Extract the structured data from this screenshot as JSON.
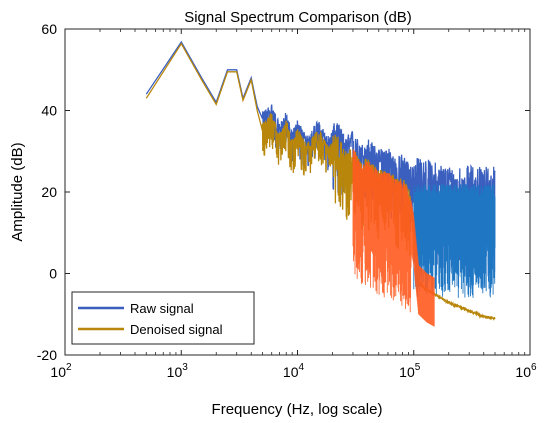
{
  "chart_data": {
    "type": "line",
    "title": "Signal Spectrum Comparison (dB)",
    "xlabel": "Frequency (Hz, log scale)",
    "ylabel": "Amplitude (dB)",
    "x_scale": "log",
    "xlim": [
      100,
      1000000
    ],
    "ylim": [
      -20,
      60
    ],
    "x_ticks": [
      {
        "base": "10",
        "exp": "2"
      },
      {
        "base": "10",
        "exp": "3"
      },
      {
        "base": "10",
        "exp": "4"
      },
      {
        "base": "10",
        "exp": "5"
      },
      {
        "base": "10",
        "exp": "6"
      }
    ],
    "y_ticks": [
      "-20",
      "0",
      "20",
      "40",
      "60"
    ],
    "grid": false,
    "legend_position": "bottom-left",
    "legend": [
      "Raw signal",
      "Denoised signal"
    ],
    "colors": {
      "raw": "#3a5fbf",
      "denoised": "#b8860b",
      "denoised_band": "#ff5a1f",
      "raw_band": "#1f77c4"
    },
    "series": [
      {
        "name": "Raw signal",
        "color": "#3a5fbf",
        "points": [
          [
            500,
            44
          ],
          [
            1000,
            56.8
          ],
          [
            1500,
            48
          ],
          [
            2000,
            42
          ],
          [
            2500,
            50
          ],
          [
            3000,
            50
          ],
          [
            3400,
            43
          ],
          [
            4000,
            48
          ],
          [
            4500,
            41
          ],
          [
            5000,
            38
          ],
          [
            6000,
            40
          ],
          [
            7000,
            35
          ],
          [
            8000,
            38
          ],
          [
            9000,
            33
          ],
          [
            10000,
            36
          ],
          [
            12000,
            32
          ],
          [
            15000,
            36
          ],
          [
            18000,
            32
          ],
          [
            22000,
            34
          ],
          [
            26000,
            30
          ],
          [
            30000,
            32
          ],
          [
            35000,
            28
          ],
          [
            40000,
            30
          ],
          [
            50000,
            27
          ],
          [
            60000,
            28
          ],
          [
            70000,
            25
          ],
          [
            80000,
            26
          ],
          [
            90000,
            24
          ],
          [
            100000,
            23
          ],
          [
            120000,
            23
          ],
          [
            150000,
            22
          ],
          [
            200000,
            21
          ],
          [
            300000,
            21
          ],
          [
            400000,
            21
          ],
          [
            500000,
            21
          ]
        ]
      },
      {
        "name": "Denoised signal",
        "color": "#b8860b",
        "points": [
          [
            500,
            43
          ],
          [
            1000,
            56.4
          ],
          [
            1500,
            47.5
          ],
          [
            2000,
            41.5
          ],
          [
            2500,
            49.5
          ],
          [
            3000,
            49.5
          ],
          [
            3400,
            42.5
          ],
          [
            4000,
            47.5
          ],
          [
            4500,
            40
          ],
          [
            5000,
            35
          ],
          [
            6000,
            38
          ],
          [
            7000,
            33
          ],
          [
            8000,
            36
          ],
          [
            9000,
            31
          ],
          [
            10000,
            34
          ],
          [
            12000,
            30
          ],
          [
            15000,
            34
          ],
          [
            18000,
            30
          ],
          [
            22000,
            31
          ],
          [
            26000,
            27
          ],
          [
            30000,
            28
          ],
          [
            35000,
            24
          ],
          [
            40000,
            25
          ],
          [
            50000,
            22
          ],
          [
            60000,
            22
          ],
          [
            70000,
            20
          ],
          [
            80000,
            20
          ],
          [
            90000,
            18
          ],
          [
            100000,
            10
          ],
          [
            110000,
            -2
          ],
          [
            130000,
            -4
          ],
          [
            150000,
            -5
          ],
          [
            200000,
            -7
          ],
          [
            300000,
            -9
          ],
          [
            400000,
            -10.5
          ],
          [
            500000,
            -11
          ]
        ]
      }
    ]
  }
}
